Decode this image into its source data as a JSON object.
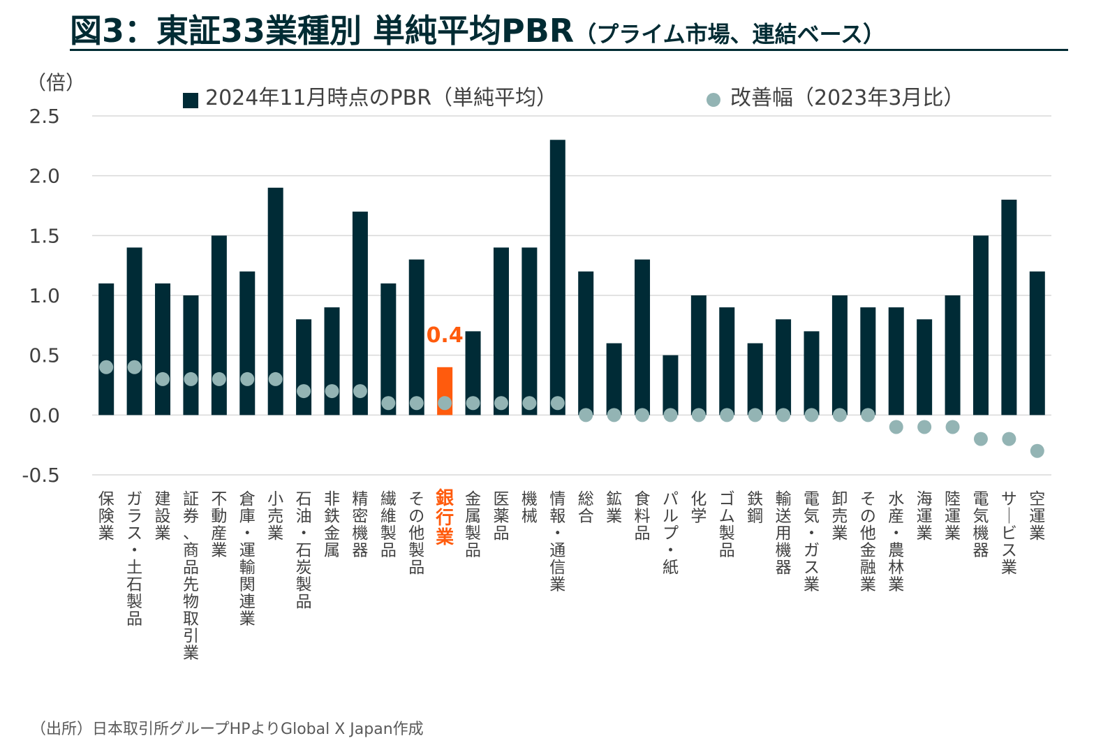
{
  "title": {
    "main": "図3：東証33業種別 単純平均PBR",
    "sub": "（プライム市場、連結ベース）"
  },
  "source": "（出所）日本取引所グループHPよりGlobal X Japan作成",
  "colors": {
    "bar": "#002b36",
    "highlight": "#ff5b0d",
    "dot": "#93b4b4",
    "grid": "#d9d9d9"
  },
  "chart_data": {
    "type": "bar",
    "yunit": "（倍）",
    "ylim": [
      -0.5,
      2.5
    ],
    "yticks": [
      "2.5",
      "2.0",
      "1.5",
      "1.0",
      "0.5",
      "0.0",
      "-0.5"
    ],
    "ytick_values": [
      2.5,
      2.0,
      1.5,
      1.0,
      0.5,
      0.0,
      -0.5
    ],
    "grid": true,
    "legend_position": "top",
    "categories": [
      "保険業",
      "ガラス・土石製品",
      "建設業",
      "証券、商品先物取引業",
      "不動産業",
      "倉庫・運輸関連業",
      "小売業",
      "石油・石炭製品",
      "非鉄金属",
      "精密機器",
      "繊維製品",
      "その他製品",
      "銀行業",
      "金属製品",
      "医薬品",
      "機械",
      "情報・通信業",
      "総合",
      "鉱業",
      "食料品",
      "パルプ・紙",
      "化学",
      "ゴム製品",
      "鉄鋼",
      "輸送用機器",
      "電気・ガス業",
      "卸売業",
      "その他金融業",
      "水産・農林業",
      "海運業",
      "陸運業",
      "電気機器",
      "サービス業",
      "空運業"
    ],
    "series": [
      {
        "name": "2024年11月時点のPBR（単純平均）",
        "kind": "bar",
        "values": [
          1.1,
          1.4,
          1.1,
          1.0,
          1.5,
          1.2,
          1.9,
          0.8,
          0.9,
          1.7,
          1.1,
          1.3,
          0.4,
          0.7,
          1.4,
          1.4,
          2.3,
          1.2,
          0.6,
          1.3,
          0.5,
          1.0,
          0.9,
          0.6,
          0.8,
          0.7,
          1.0,
          0.9,
          0.9,
          0.8,
          1.0,
          1.5,
          1.8,
          1.2
        ]
      },
      {
        "name": "改善幅（2023年3月比）",
        "kind": "dot",
        "values": [
          0.4,
          0.4,
          0.3,
          0.3,
          0.3,
          0.3,
          0.3,
          0.2,
          0.2,
          0.2,
          0.1,
          0.1,
          0.1,
          0.1,
          0.1,
          0.1,
          0.1,
          0.0,
          0.0,
          0.0,
          0.0,
          0.0,
          0.0,
          0.0,
          0.0,
          0.0,
          0.0,
          0.0,
          -0.1,
          -0.1,
          -0.1,
          -0.2,
          -0.2,
          -0.3
        ]
      }
    ],
    "highlight": {
      "category": "銀行業",
      "annotation": "0.4"
    }
  }
}
